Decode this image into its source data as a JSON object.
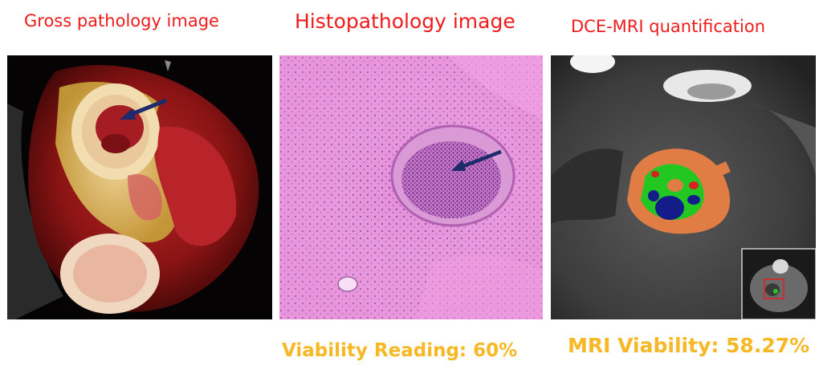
{
  "panels": [
    {
      "title": "Gross pathology image"
    },
    {
      "title": "Histopathology image"
    },
    {
      "title": "DCE-MRI quantification"
    }
  ],
  "captions": {
    "histopathology": "Viability Reading: 60%",
    "mri": "MRI Viability: 58.27%"
  },
  "colors": {
    "title": "#ee1c1c",
    "caption": "#f6b825",
    "arrow": "#1c2b6b",
    "inset_box": "#e02020"
  }
}
